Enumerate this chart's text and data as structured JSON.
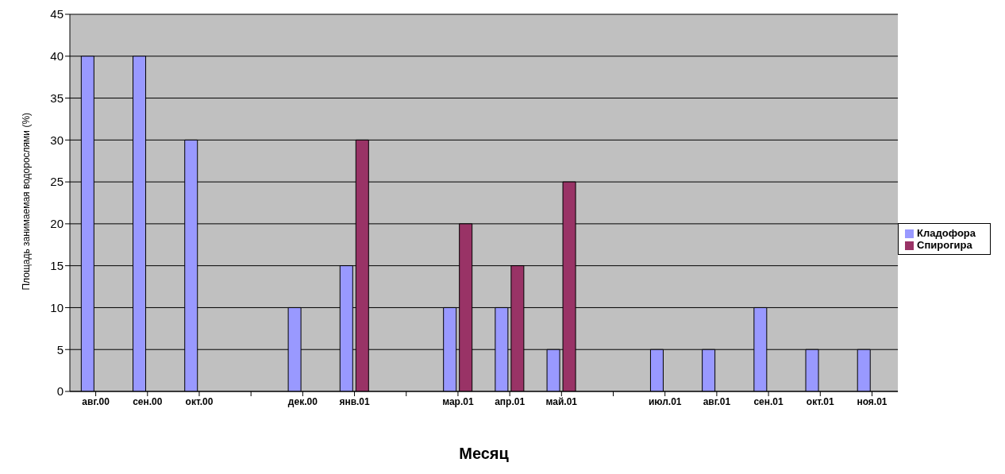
{
  "chart_data": {
    "type": "bar",
    "xlabel": "Месяц",
    "ylabel": "Площадь занимаемая водорослями (%)",
    "categories": [
      "авг.00",
      "сен.00",
      "окт.00",
      null,
      "дек.00",
      "янв.01",
      null,
      "мар.01",
      "апр.01",
      "май.01",
      null,
      "июл.01",
      "авг.01",
      "сен.01",
      "окт.01",
      "ноя.01"
    ],
    "series": [
      {
        "name": "Кладофора",
        "color": "#9999ff",
        "values": [
          40,
          40,
          30,
          null,
          10,
          15,
          null,
          10,
          10,
          5,
          null,
          5,
          5,
          10,
          5,
          5
        ]
      },
      {
        "name": "Спирогира",
        "color": "#993366",
        "values": [
          null,
          null,
          null,
          null,
          null,
          30,
          null,
          20,
          15,
          25,
          null,
          null,
          null,
          null,
          null,
          null
        ]
      }
    ],
    "ylim": [
      0,
      45
    ],
    "yticks": [
      0,
      5,
      10,
      15,
      20,
      25,
      30,
      35,
      40,
      45
    ],
    "grid": "y",
    "legend": "right"
  }
}
